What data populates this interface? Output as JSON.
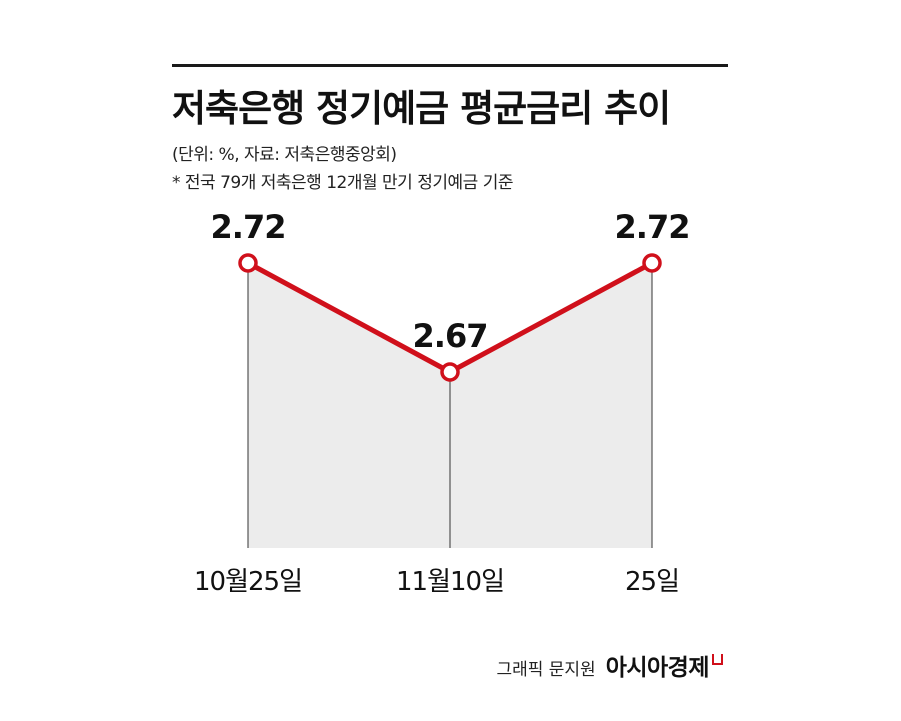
{
  "header": {
    "title": "저축은행 정기예금 평균금리 추이",
    "unit_note": "(단위: %, 자료: 저축은행중앙회)",
    "footnote": "* 전국 79개 저축은행 12개월 만기 정기예금 기준"
  },
  "colors": {
    "line": "#d0101b",
    "area": "#ececec",
    "rule": "#1a1a1a"
  },
  "chart_data": {
    "type": "line",
    "title": "저축은행 정기예금 평균금리 추이",
    "categories": [
      "10월25일",
      "11월10일",
      "25일"
    ],
    "series": [
      {
        "values": [
          2.72,
          2.67,
          2.72
        ]
      }
    ],
    "data_labels": [
      "2.72",
      "2.67",
      "2.72"
    ],
    "grid": false,
    "legend": "none"
  },
  "credit": {
    "graphic": "그래픽 문지원",
    "brand": "아시아경제"
  }
}
